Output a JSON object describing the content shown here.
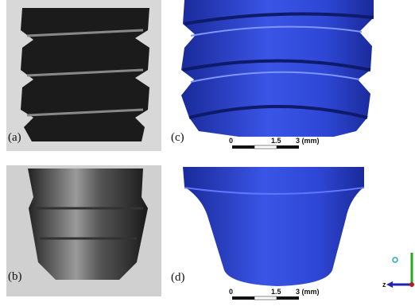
{
  "panels": [
    {
      "label": "(a)"
    },
    {
      "label": "(b)"
    },
    {
      "label": "(c)",
      "scale_bar": [
        "0",
        "1.5",
        "3 (mm)"
      ]
    },
    {
      "label": "(d)",
      "scale_bar": [
        "0",
        "1.5",
        "3 (mm)"
      ]
    }
  ],
  "axes_triad": {
    "axis_label": "z"
  }
}
